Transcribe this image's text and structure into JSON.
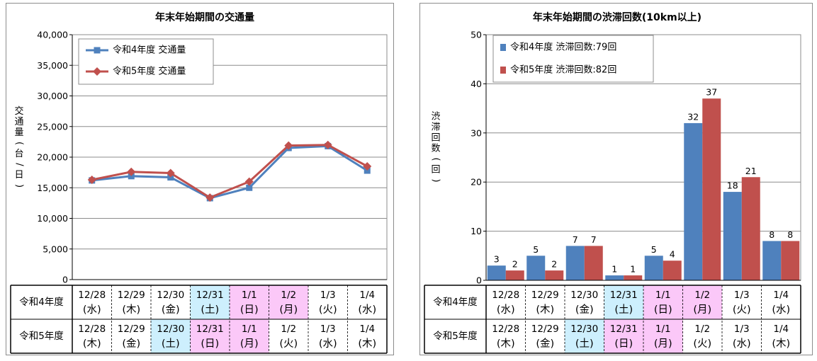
{
  "left_chart": {
    "chart_data": {
      "type": "line",
      "title": "年末年始期間の交通量",
      "ylabel": "交通量(台/日)",
      "ylim": [
        0,
        40000
      ],
      "yticks": [
        "0",
        "5,000",
        "10,000",
        "15,000",
        "20,000",
        "25,000",
        "30,000",
        "35,000",
        "40,000"
      ],
      "grid": true,
      "legend_position": "top-left",
      "series": [
        {
          "name": "令和4年度 交通量",
          "color": "#4f81bd",
          "marker": "square",
          "values": [
            16200,
            16900,
            16700,
            13300,
            15000,
            21500,
            21800,
            17800
          ]
        },
        {
          "name": "令和5年度 交通量",
          "color": "#c0504d",
          "marker": "diamond",
          "values": [
            16300,
            17600,
            17400,
            13400,
            16000,
            21900,
            22000,
            18500
          ]
        }
      ]
    },
    "table": {
      "rows": [
        {
          "label": "令和4年度",
          "cells": [
            {
              "date": "12/28",
              "dow": "(水)",
              "fill": "#ffffff"
            },
            {
              "date": "12/29",
              "dow": "(木)",
              "fill": "#ffffff"
            },
            {
              "date": "12/30",
              "dow": "(金)",
              "fill": "#ffffff"
            },
            {
              "date": "12/31",
              "dow": "(土)",
              "fill": "#cdeffd"
            },
            {
              "date": "1/1",
              "dow": "(日)",
              "fill": "#fbc8f8"
            },
            {
              "date": "1/2",
              "dow": "(月)",
              "fill": "#fbc8f8"
            },
            {
              "date": "1/3",
              "dow": "(火)",
              "fill": "#ffffff"
            },
            {
              "date": "1/4",
              "dow": "(水)",
              "fill": "#ffffff"
            }
          ]
        },
        {
          "label": "令和5年度",
          "cells": [
            {
              "date": "12/28",
              "dow": "(木)",
              "fill": "#ffffff"
            },
            {
              "date": "12/29",
              "dow": "(金)",
              "fill": "#ffffff"
            },
            {
              "date": "12/30",
              "dow": "(土)",
              "fill": "#cdeffd"
            },
            {
              "date": "12/31",
              "dow": "(日)",
              "fill": "#fbc8f8"
            },
            {
              "date": "1/1",
              "dow": "(月)",
              "fill": "#fbc8f8"
            },
            {
              "date": "1/2",
              "dow": "(火)",
              "fill": "#ffffff"
            },
            {
              "date": "1/3",
              "dow": "(水)",
              "fill": "#ffffff"
            },
            {
              "date": "1/4",
              "dow": "(木)",
              "fill": "#ffffff"
            }
          ]
        }
      ]
    }
  },
  "right_chart": {
    "chart_data": {
      "type": "bar",
      "title": "年末年始期間の渋滞回数(10km以上)",
      "ylabel": "渋滞回数(回)",
      "ylim": [
        0,
        50
      ],
      "yticks": [
        "0",
        "10",
        "20",
        "30",
        "40",
        "50"
      ],
      "grid": true,
      "legend_position": "top-left",
      "series": [
        {
          "name": "令和4年度 渋滞回数:79回",
          "color": "#4f81bd",
          "values": [
            3,
            5,
            7,
            1,
            5,
            32,
            18,
            8
          ]
        },
        {
          "name": "令和5年度 渋滞回数:82回",
          "color": "#c0504d",
          "values": [
            2,
            2,
            7,
            1,
            4,
            37,
            21,
            8
          ]
        }
      ]
    },
    "table": {
      "rows": [
        {
          "label": "令和4年度",
          "cells": [
            {
              "date": "12/28",
              "dow": "(水)",
              "fill": "#ffffff"
            },
            {
              "date": "12/29",
              "dow": "(木)",
              "fill": "#ffffff"
            },
            {
              "date": "12/30",
              "dow": "(金)",
              "fill": "#ffffff"
            },
            {
              "date": "12/31",
              "dow": "(土)",
              "fill": "#cdeffd"
            },
            {
              "date": "1/1",
              "dow": "(日)",
              "fill": "#fbc8f8"
            },
            {
              "date": "1/2",
              "dow": "(月)",
              "fill": "#fbc8f8"
            },
            {
              "date": "1/3",
              "dow": "(火)",
              "fill": "#ffffff"
            },
            {
              "date": "1/4",
              "dow": "(水)",
              "fill": "#ffffff"
            }
          ]
        },
        {
          "label": "令和5年度",
          "cells": [
            {
              "date": "12/28",
              "dow": "(木)",
              "fill": "#ffffff"
            },
            {
              "date": "12/29",
              "dow": "(金)",
              "fill": "#ffffff"
            },
            {
              "date": "12/30",
              "dow": "(土)",
              "fill": "#cdeffd"
            },
            {
              "date": "12/31",
              "dow": "(日)",
              "fill": "#fbc8f8"
            },
            {
              "date": "1/1",
              "dow": "(月)",
              "fill": "#fbc8f8"
            },
            {
              "date": "1/2",
              "dow": "(火)",
              "fill": "#ffffff"
            },
            {
              "date": "1/3",
              "dow": "(水)",
              "fill": "#ffffff"
            },
            {
              "date": "1/4",
              "dow": "(木)",
              "fill": "#ffffff"
            }
          ]
        }
      ]
    }
  }
}
